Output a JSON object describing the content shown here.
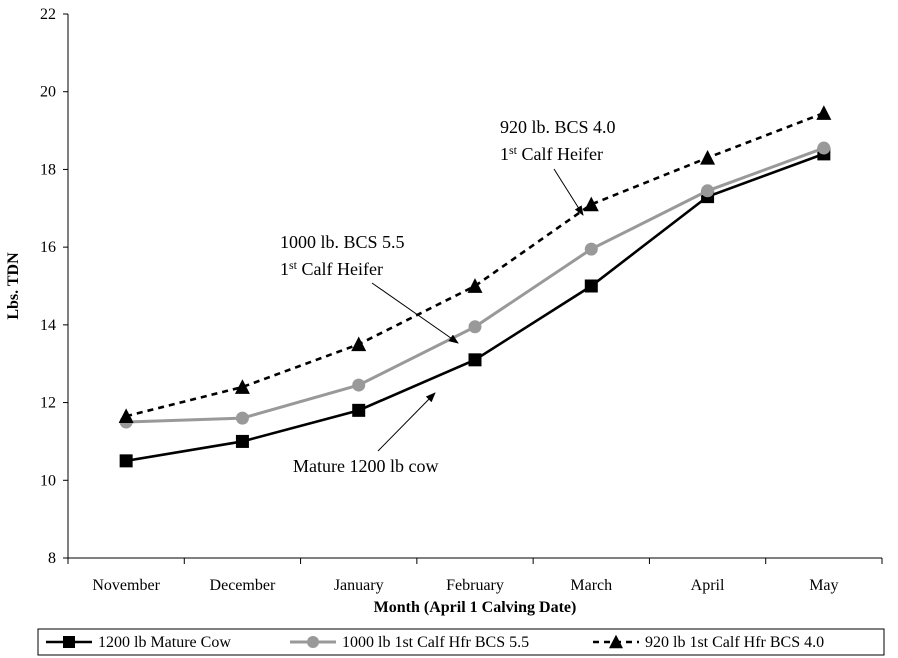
{
  "chart_data": {
    "type": "line",
    "categories": [
      "November",
      "December",
      "January",
      "February",
      "March",
      "April",
      "May"
    ],
    "series": [
      {
        "name": "1200 lb Mature Cow",
        "values": [
          10.5,
          11.0,
          11.8,
          13.1,
          15.0,
          17.3,
          18.4
        ],
        "color": "#000000",
        "marker": "square",
        "dash": "solid"
      },
      {
        "name": "1000 lb 1st Calf Hfr BCS 5.5",
        "values": [
          11.5,
          11.6,
          12.45,
          13.95,
          15.95,
          17.45,
          18.55
        ],
        "color": "#999999",
        "marker": "circle",
        "dash": "solid"
      },
      {
        "name": "920 lb 1st Calf Hfr BCS 4.0",
        "values": [
          11.65,
          12.4,
          13.5,
          15.0,
          17.1,
          18.3,
          19.45
        ],
        "color": "#000000",
        "marker": "triangle",
        "dash": "dashed"
      }
    ],
    "xlabel": "Month (April 1 Calving Date)",
    "ylabel": "Lbs. TDN",
    "ylim": [
      8,
      22
    ],
    "yticks": [
      "8",
      "10",
      "12",
      "14",
      "16",
      "18",
      "20",
      "22"
    ],
    "grid": false,
    "legend": "bottom",
    "annotations": [
      {
        "lines": [
          "920 lb. BCS 4.0",
          "1st Calf Heifer"
        ]
      },
      {
        "lines": [
          "1000 lb. BCS 5.5",
          "1st Calf Heifer"
        ]
      },
      {
        "lines": [
          "Mature 1200 lb cow"
        ]
      }
    ]
  }
}
